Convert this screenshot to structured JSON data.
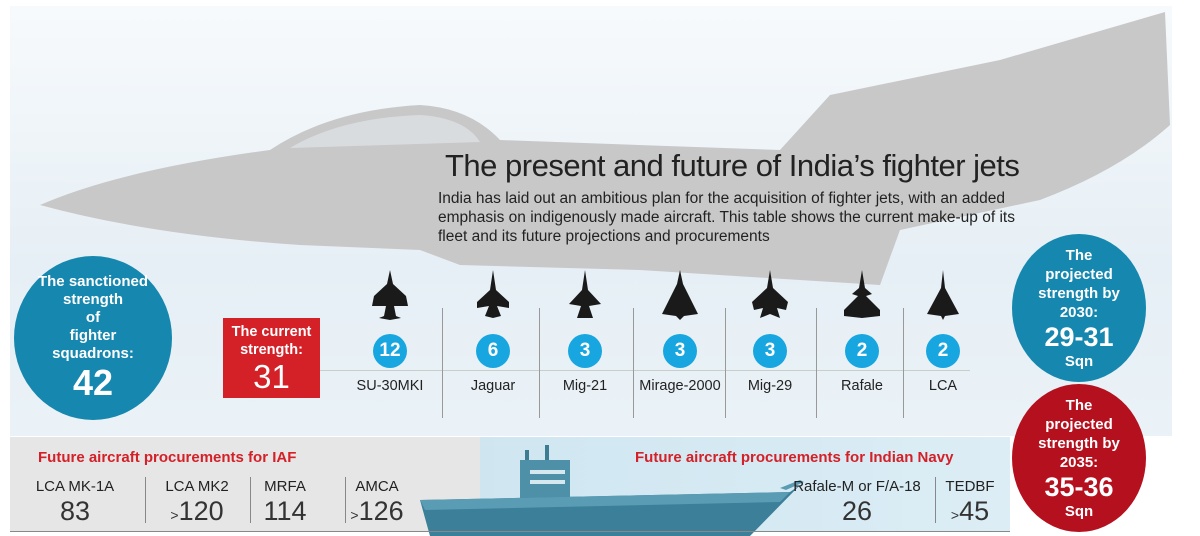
{
  "title": "The present and future of India’s fighter jets",
  "subtitle": "India has laid out an ambitious plan for the acquisition of fighter jets, with an added emphasis on indigenously made aircraft. This table shows the current make-up of its fleet and its future projections and procurements",
  "sanctioned": {
    "lines": [
      "The sanctioned",
      "strength",
      "of",
      "fighter",
      "squadrons:"
    ],
    "value": "42"
  },
  "current": {
    "lines": [
      "The current",
      "strength:"
    ],
    "value": "31"
  },
  "aircraft": [
    {
      "name": "SU-30MKI",
      "squadrons": "12",
      "icon": "su30-silhouette-icon"
    },
    {
      "name": "Jaguar",
      "squadrons": "6",
      "icon": "jaguar-silhouette-icon"
    },
    {
      "name": "Mig-21",
      "squadrons": "3",
      "icon": "mig21-silhouette-icon"
    },
    {
      "name": "Mirage-2000",
      "squadrons": "3",
      "icon": "mirage-silhouette-icon"
    },
    {
      "name": "Mig-29",
      "squadrons": "3",
      "icon": "mig29-silhouette-icon"
    },
    {
      "name": "Rafale",
      "squadrons": "2",
      "icon": "rafale-silhouette-icon"
    },
    {
      "name": "LCA",
      "squadrons": "2",
      "icon": "lca-silhouette-icon"
    }
  ],
  "proj2030": {
    "lines": [
      "The",
      "projected",
      "strength by",
      "2030:"
    ],
    "value": "29-31",
    "unit": "Sqn"
  },
  "proj2035": {
    "lines": [
      "The",
      "projected",
      "strength by",
      "2035:"
    ],
    "value": "35-36",
    "unit": "Sqn"
  },
  "iaf": {
    "heading": "Future aircraft procurements for IAF",
    "items": [
      {
        "label": "LCA MK-1A",
        "prefix": "",
        "value": "83"
      },
      {
        "label": "LCA MK2",
        "prefix": ">",
        "value": "120"
      },
      {
        "label": "MRFA",
        "prefix": "",
        "value": "114"
      },
      {
        "label": "AMCA",
        "prefix": ">",
        "value": "126"
      }
    ]
  },
  "navy": {
    "heading": "Future aircraft procurements for Indian Navy",
    "items": [
      {
        "label": "Rafale-M or F/A-18",
        "prefix": "",
        "value": "26"
      },
      {
        "label": "TEDBF",
        "prefix": ">",
        "value": "45"
      }
    ]
  },
  "colors": {
    "teal": "#1687ae",
    "red": "#d42027",
    "darkred": "#b4101e",
    "badge": "#18a6e0",
    "jet": "#c8c8c8"
  }
}
